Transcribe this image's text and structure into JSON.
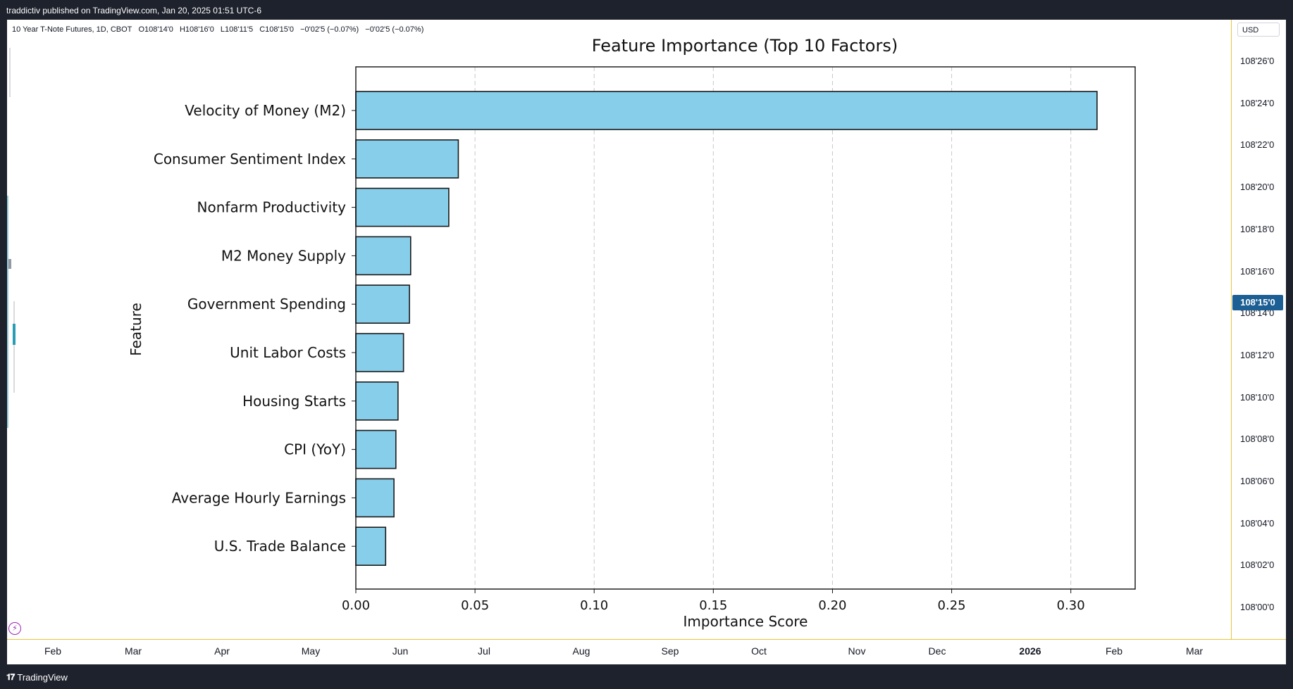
{
  "header": {
    "publisher_line": "traddictiv published on TradingView.com, Jan 20, 2025 01:51 UTC-6"
  },
  "legend": {
    "symbol": "10 Year T-Note Futures, 1D, CBOT",
    "open": "O108'14'0",
    "high": "H108'16'0",
    "low": "L108'11'5",
    "close": "C108'15'0",
    "change": "−0'02'5 (−0.07%)",
    "change2": "−0'02'5 (−0.07%)"
  },
  "price_axis": {
    "currency": "USD",
    "ticks": [
      "108'26'0",
      "108'24'0",
      "108'22'0",
      "108'20'0",
      "108'18'0",
      "108'16'0",
      "108'14'0",
      "108'12'0",
      "108'10'0",
      "108'08'0",
      "108'06'0",
      "108'04'0",
      "108'02'0",
      "108'00'0"
    ],
    "current": "108'15'0",
    "current_color": "#1c5f94"
  },
  "time_axis": {
    "ticks": [
      "Feb",
      "Mar",
      "Apr",
      "May",
      "Jun",
      "Jul",
      "Aug",
      "Sep",
      "Oct",
      "Nov",
      "Dec",
      "2026",
      "Feb",
      "Mar"
    ]
  },
  "footer": {
    "brand": "TradingView",
    "logo_icon": "tradingview-logo-icon"
  },
  "chart_data": {
    "type": "bar",
    "orientation": "horizontal",
    "title": "Feature Importance (Top 10 Factors)",
    "xlabel": "Importance Score",
    "ylabel": "Feature",
    "categories": [
      "Velocity of Money (M2)",
      "Consumer Sentiment Index",
      "Nonfarm Productivity",
      "M2 Money Supply",
      "Government Spending",
      "Unit Labor Costs",
      "Housing Starts",
      "CPI (YoY)",
      "Average Hourly Earnings",
      "U.S. Trade Balance"
    ],
    "values": [
      0.311,
      0.043,
      0.039,
      0.023,
      0.0225,
      0.02,
      0.0177,
      0.0168,
      0.016,
      0.0125
    ],
    "xlim": [
      0,
      0.327
    ],
    "xticks": [
      "0.00",
      "0.05",
      "0.10",
      "0.15",
      "0.20",
      "0.25",
      "0.30"
    ],
    "grid": "x-dashed",
    "bar_color": "#87ceeb",
    "edge_color": "#1a1a1a"
  }
}
